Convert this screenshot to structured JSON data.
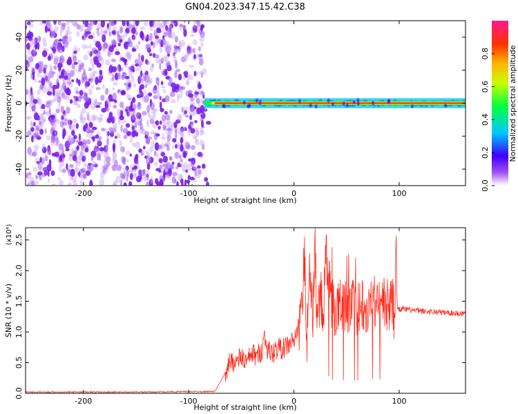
{
  "title": "GN04.2023.347.15.42.C38",
  "colors": {
    "scatter": "#7a1ee8",
    "snr_line": "#ff2a1a",
    "axis": "#000000"
  },
  "chart_data": [
    {
      "type": "heatmap",
      "title": "GN04.2023.347.15.42.C38",
      "xlabel": "Height of straight line (km)",
      "ylabel": "Frequency (Hz)",
      "xlim": [
        -255,
        163
      ],
      "ylim": [
        -50,
        50
      ],
      "x_ticks": [
        -200,
        -100,
        0,
        100
      ],
      "y_ticks": [
        -40,
        -20,
        0,
        20,
        40
      ],
      "colorbar": {
        "label": "Normalized spectral amplitude",
        "range": [
          0.0,
          1.0
        ],
        "ticks": [
          "0.0",
          "0.2",
          "0.4",
          "0.6",
          "0.8"
        ],
        "colormap": [
          "#ffffff",
          "#7a1ee8",
          "#0000ff",
          "#00c8ff",
          "#00ff00",
          "#ffff00",
          "#ff8000",
          "#ff0000",
          "#ff1a8c"
        ]
      },
      "regions": [
        {
          "x_range": [
            -255,
            -85
          ],
          "freq_range": [
            -50,
            50
          ],
          "amplitude": "low (noise)"
        },
        {
          "x_range": [
            -85,
            163
          ],
          "freq_center": 0,
          "freq_halfwidth": 3,
          "amplitude": "high"
        }
      ]
    },
    {
      "type": "line",
      "xlabel": "Height of straight line (km)",
      "ylabel": "SNR (10 * v/v)",
      "y_multiplier": "(x10⁴)",
      "xlim": [
        -255,
        163
      ],
      "ylim": [
        0,
        2.7
      ],
      "x_ticks": [
        -200,
        -100,
        0,
        100
      ],
      "y_ticks": [
        "0.0",
        "0.5",
        "1.0",
        "1.5",
        "2.0",
        "2.5"
      ],
      "y_tick_values": [
        0,
        0.5,
        1.0,
        1.5,
        2.0,
        2.5
      ],
      "series": [
        {
          "x": [
            -255,
            -150,
            -75,
            -63,
            -60,
            -55,
            -50,
            -45,
            -40,
            -35,
            -30,
            -28,
            -25,
            -20,
            -15,
            -10,
            -5,
            0,
            5,
            8,
            10,
            12,
            15,
            18,
            20,
            22,
            25,
            28,
            30,
            35,
            40,
            45,
            50,
            55,
            60,
            65,
            70,
            75,
            80,
            85,
            90,
            93,
            96,
            97,
            98,
            100,
            110,
            120,
            130,
            140,
            150,
            163
          ],
          "y": [
            0.02,
            0.02,
            0.03,
            0.4,
            0.55,
            0.5,
            0.6,
            0.5,
            0.65,
            0.6,
            0.72,
            0.95,
            0.7,
            0.65,
            0.75,
            0.72,
            0.8,
            0.85,
            1.1,
            1.35,
            2.4,
            0.8,
            1.9,
            1.3,
            2.55,
            1.0,
            1.65,
            1.2,
            2.3,
            1.55,
            1.3,
            1.5,
            1.4,
            1.45,
            1.35,
            1.5,
            1.4,
            1.55,
            1.45,
            1.5,
            1.4,
            1.55,
            1.2,
            2.7,
            1.4,
            1.38,
            1.36,
            1.34,
            1.33,
            1.32,
            1.31,
            1.3
          ]
        }
      ]
    }
  ]
}
